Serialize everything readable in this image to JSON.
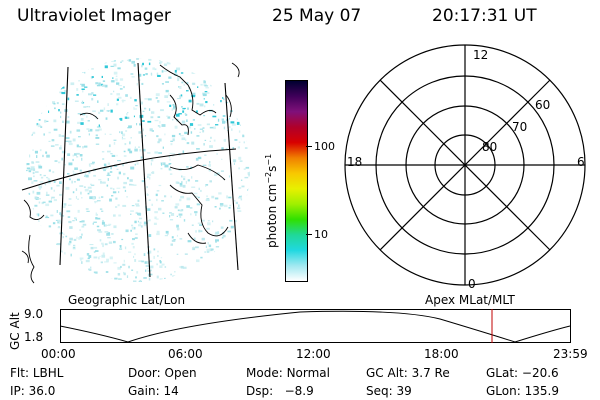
{
  "header": {
    "title": "Ultraviolet Imager",
    "date": "25 May 07",
    "time": "20:17:31 UT"
  },
  "left_panel": {
    "caption": "Geographic Lat/Lon"
  },
  "colorbar": {
    "unit_label": "photon cm",
    "unit_sup1": "−2",
    "unit_mid": "s",
    "unit_sup2": "−1",
    "ticks": [
      "100",
      "10"
    ],
    "scale": "log",
    "colors": [
      "#000030",
      "#40005a",
      "#80107a",
      "#b0002a",
      "#d80000",
      "#f08000",
      "#f8c800",
      "#e8f000",
      "#a0f000",
      "#30e000",
      "#20d898",
      "#20d8e0",
      "#a0e8f0",
      "#ffffff"
    ]
  },
  "polar": {
    "caption": "Apex  MLat/MLT",
    "hour_labels": {
      "top": "12",
      "left": "18",
      "right": "6",
      "bottom": "0"
    },
    "lat_labels": [
      "60",
      "70",
      "80"
    ]
  },
  "orbit": {
    "axis_title": "GC Alt",
    "y_ticks": [
      "9.0",
      "1.8"
    ],
    "x_ticks": [
      "00:00",
      "06:00",
      "12:00",
      "18:00",
      "23:59"
    ],
    "marker_color": "#c00000"
  },
  "status": {
    "row1": [
      {
        "label": "Flt:",
        "value": "LBHL"
      },
      {
        "label": "Door:",
        "value": "Open"
      },
      {
        "label": "Mode:",
        "value": "Normal"
      },
      {
        "label": "GC Alt:",
        "value": "3.7 Re"
      },
      {
        "label": "GLat:",
        "value": "−20.6"
      }
    ],
    "row2": [
      {
        "label": "IP:",
        "value": "36.0"
      },
      {
        "label": "Gain:",
        "value": "14"
      },
      {
        "label": "Dsp:",
        "value": "  −8.9"
      },
      {
        "label": "Seq:",
        "value": "39"
      },
      {
        "label": "GLon:",
        "value": "135.9"
      }
    ]
  }
}
